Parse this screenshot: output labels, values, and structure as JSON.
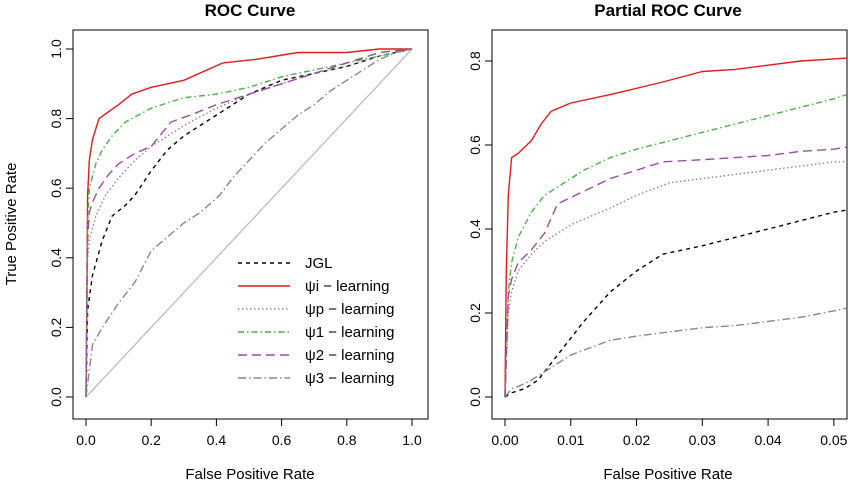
{
  "chart_data": [
    {
      "type": "line",
      "title": "ROC Curve",
      "xlabel": "False Positive Rate",
      "ylabel": "True Positive Rate",
      "xlim": [
        0,
        1
      ],
      "ylim": [
        0,
        1
      ],
      "x_ticks": [
        "0.0",
        "0.2",
        "0.4",
        "0.6",
        "0.8",
        "1.0"
      ],
      "y_ticks": [
        "0.0",
        "0.2",
        "0.4",
        "0.6",
        "0.8",
        "1.0"
      ],
      "legend": {
        "position": "bottom-right",
        "entries": [
          "JGL",
          "ψi − learning",
          "ψp − learning",
          "ψ1 − learning",
          "ψ2 − learning",
          "ψ3 − learning"
        ]
      },
      "diagonal": {
        "x": [
          0,
          1
        ],
        "y": [
          0,
          1
        ],
        "color": "#bbbbbb"
      },
      "series": [
        {
          "name": "JGL",
          "color": "#000000",
          "dash": "4,4",
          "x": [
            0,
            0.005,
            0.02,
            0.05,
            0.08,
            0.12,
            0.15,
            0.2,
            0.25,
            0.3,
            0.4,
            0.5,
            0.6,
            0.7,
            0.8,
            0.9,
            0.95,
            1.0
          ],
          "y": [
            0,
            0.25,
            0.35,
            0.45,
            0.52,
            0.55,
            0.58,
            0.65,
            0.71,
            0.75,
            0.81,
            0.87,
            0.91,
            0.93,
            0.95,
            0.98,
            0.99,
            1.0
          ]
        },
        {
          "name": "ψi − learning",
          "color": "#e41a1c",
          "dash": "",
          "x": [
            0,
            0.005,
            0.01,
            0.02,
            0.04,
            0.07,
            0.1,
            0.14,
            0.2,
            0.3,
            0.42,
            0.52,
            0.65,
            0.8,
            0.9,
            1.0
          ],
          "y": [
            0,
            0.58,
            0.68,
            0.74,
            0.8,
            0.82,
            0.84,
            0.87,
            0.89,
            0.91,
            0.96,
            0.97,
            0.99,
            0.99,
            1.0,
            1.0
          ]
        },
        {
          "name": "ψp − learning",
          "color": "#888888",
          "dash": "1.5,2.5",
          "x": [
            0,
            0.005,
            0.01,
            0.03,
            0.06,
            0.1,
            0.15,
            0.2,
            0.3,
            0.4,
            0.5,
            0.6,
            0.7,
            0.8,
            0.9,
            1.0
          ],
          "y": [
            0,
            0.4,
            0.45,
            0.52,
            0.58,
            0.63,
            0.68,
            0.72,
            0.78,
            0.83,
            0.87,
            0.9,
            0.93,
            0.95,
            0.98,
            1.0
          ]
        },
        {
          "name": "ψ1 − learning",
          "color": "#4daf4a",
          "dash": "6,3,1.5,3",
          "x": [
            0,
            0.005,
            0.01,
            0.03,
            0.05,
            0.08,
            0.12,
            0.2,
            0.3,
            0.4,
            0.5,
            0.6,
            0.7,
            0.8,
            0.9,
            1.0
          ],
          "y": [
            0,
            0.5,
            0.6,
            0.67,
            0.71,
            0.75,
            0.79,
            0.83,
            0.86,
            0.87,
            0.89,
            0.92,
            0.94,
            0.96,
            0.98,
            1.0
          ]
        },
        {
          "name": "ψ2 − learning",
          "color": "#984ea3",
          "dash": "9,5",
          "x": [
            0,
            0.005,
            0.01,
            0.02,
            0.04,
            0.07,
            0.1,
            0.15,
            0.2,
            0.26,
            0.32,
            0.4,
            0.5,
            0.6,
            0.7,
            0.8,
            0.9,
            1.0
          ],
          "y": [
            0,
            0.45,
            0.53,
            0.56,
            0.6,
            0.64,
            0.67,
            0.7,
            0.72,
            0.79,
            0.81,
            0.84,
            0.87,
            0.9,
            0.93,
            0.96,
            0.99,
            1.0
          ]
        },
        {
          "name": "ψ3 − learning",
          "color": "#888888",
          "dash": "8,3,1.5,3",
          "x": [
            0,
            0.02,
            0.05,
            0.1,
            0.15,
            0.2,
            0.25,
            0.3,
            0.35,
            0.41,
            0.45,
            0.5,
            0.55,
            0.6,
            0.65,
            0.7,
            0.75,
            0.8,
            0.85,
            0.9,
            0.95,
            1.0
          ],
          "y": [
            0,
            0.15,
            0.2,
            0.27,
            0.33,
            0.42,
            0.46,
            0.5,
            0.53,
            0.58,
            0.63,
            0.68,
            0.73,
            0.77,
            0.81,
            0.84,
            0.88,
            0.91,
            0.94,
            0.97,
            0.99,
            1.0
          ]
        }
      ]
    },
    {
      "type": "line",
      "title": "Partial ROC Curve",
      "xlabel": "False Positive Rate",
      "ylabel": "",
      "xlim": [
        0,
        0.052
      ],
      "ylim": [
        0,
        0.83
      ],
      "x_ticks": [
        "0.00",
        "0.01",
        "0.02",
        "0.03",
        "0.04",
        "0.05"
      ],
      "y_ticks": [
        "0.0",
        "0.2",
        "0.4",
        "0.6",
        "0.8"
      ],
      "series": [
        {
          "name": "JGL",
          "color": "#000000",
          "dash": "4,4",
          "x": [
            0,
            0.001,
            0.003,
            0.005,
            0.008,
            0.012,
            0.016,
            0.02,
            0.024,
            0.03,
            0.035,
            0.04,
            0.045,
            0.05,
            0.052
          ],
          "y": [
            0,
            0.01,
            0.02,
            0.04,
            0.1,
            0.18,
            0.25,
            0.3,
            0.34,
            0.36,
            0.38,
            0.4,
            0.42,
            0.44,
            0.445
          ]
        },
        {
          "name": "ψi − learning",
          "color": "#e41a1c",
          "dash": "",
          "x": [
            0,
            0.0002,
            0.0005,
            0.001,
            0.002,
            0.004,
            0.0055,
            0.007,
            0.01,
            0.016,
            0.024,
            0.03,
            0.035,
            0.04,
            0.045,
            0.05,
            0.052
          ],
          "y": [
            0,
            0.3,
            0.48,
            0.57,
            0.58,
            0.61,
            0.65,
            0.68,
            0.7,
            0.72,
            0.75,
            0.775,
            0.78,
            0.79,
            0.8,
            0.805,
            0.807
          ]
        },
        {
          "name": "ψp − learning",
          "color": "#888888",
          "dash": "1.5,2.5",
          "x": [
            0,
            0.0005,
            0.001,
            0.002,
            0.004,
            0.006,
            0.01,
            0.016,
            0.02,
            0.025,
            0.03,
            0.035,
            0.04,
            0.045,
            0.05,
            0.052
          ],
          "y": [
            0,
            0.2,
            0.25,
            0.3,
            0.34,
            0.37,
            0.41,
            0.45,
            0.48,
            0.51,
            0.52,
            0.53,
            0.54,
            0.55,
            0.56,
            0.56
          ]
        },
        {
          "name": "ψ1 − learning",
          "color": "#4daf4a",
          "dash": "6,3,1.5,3",
          "x": [
            0,
            0.0005,
            0.001,
            0.002,
            0.004,
            0.006,
            0.008,
            0.012,
            0.016,
            0.02,
            0.025,
            0.03,
            0.035,
            0.04,
            0.045,
            0.05,
            0.052
          ],
          "y": [
            0,
            0.25,
            0.32,
            0.38,
            0.44,
            0.48,
            0.5,
            0.54,
            0.57,
            0.59,
            0.61,
            0.63,
            0.65,
            0.67,
            0.69,
            0.71,
            0.72
          ]
        },
        {
          "name": "ψ2 − learning",
          "color": "#984ea3",
          "dash": "9,5",
          "x": [
            0,
            0.0005,
            0.001,
            0.002,
            0.004,
            0.006,
            0.008,
            0.012,
            0.016,
            0.02,
            0.024,
            0.03,
            0.035,
            0.04,
            0.045,
            0.05,
            0.052
          ],
          "y": [
            0,
            0.24,
            0.28,
            0.32,
            0.35,
            0.39,
            0.46,
            0.49,
            0.52,
            0.54,
            0.56,
            0.565,
            0.57,
            0.575,
            0.585,
            0.59,
            0.595
          ]
        },
        {
          "name": "ψ3 − learning",
          "color": "#888888",
          "dash": "8,3,1.5,3",
          "x": [
            0,
            0.001,
            0.002,
            0.004,
            0.006,
            0.01,
            0.016,
            0.02,
            0.025,
            0.03,
            0.035,
            0.04,
            0.045,
            0.05,
            0.052
          ],
          "y": [
            0,
            0.02,
            0.025,
            0.04,
            0.06,
            0.1,
            0.135,
            0.145,
            0.155,
            0.165,
            0.17,
            0.18,
            0.19,
            0.205,
            0.212
          ]
        }
      ]
    }
  ]
}
